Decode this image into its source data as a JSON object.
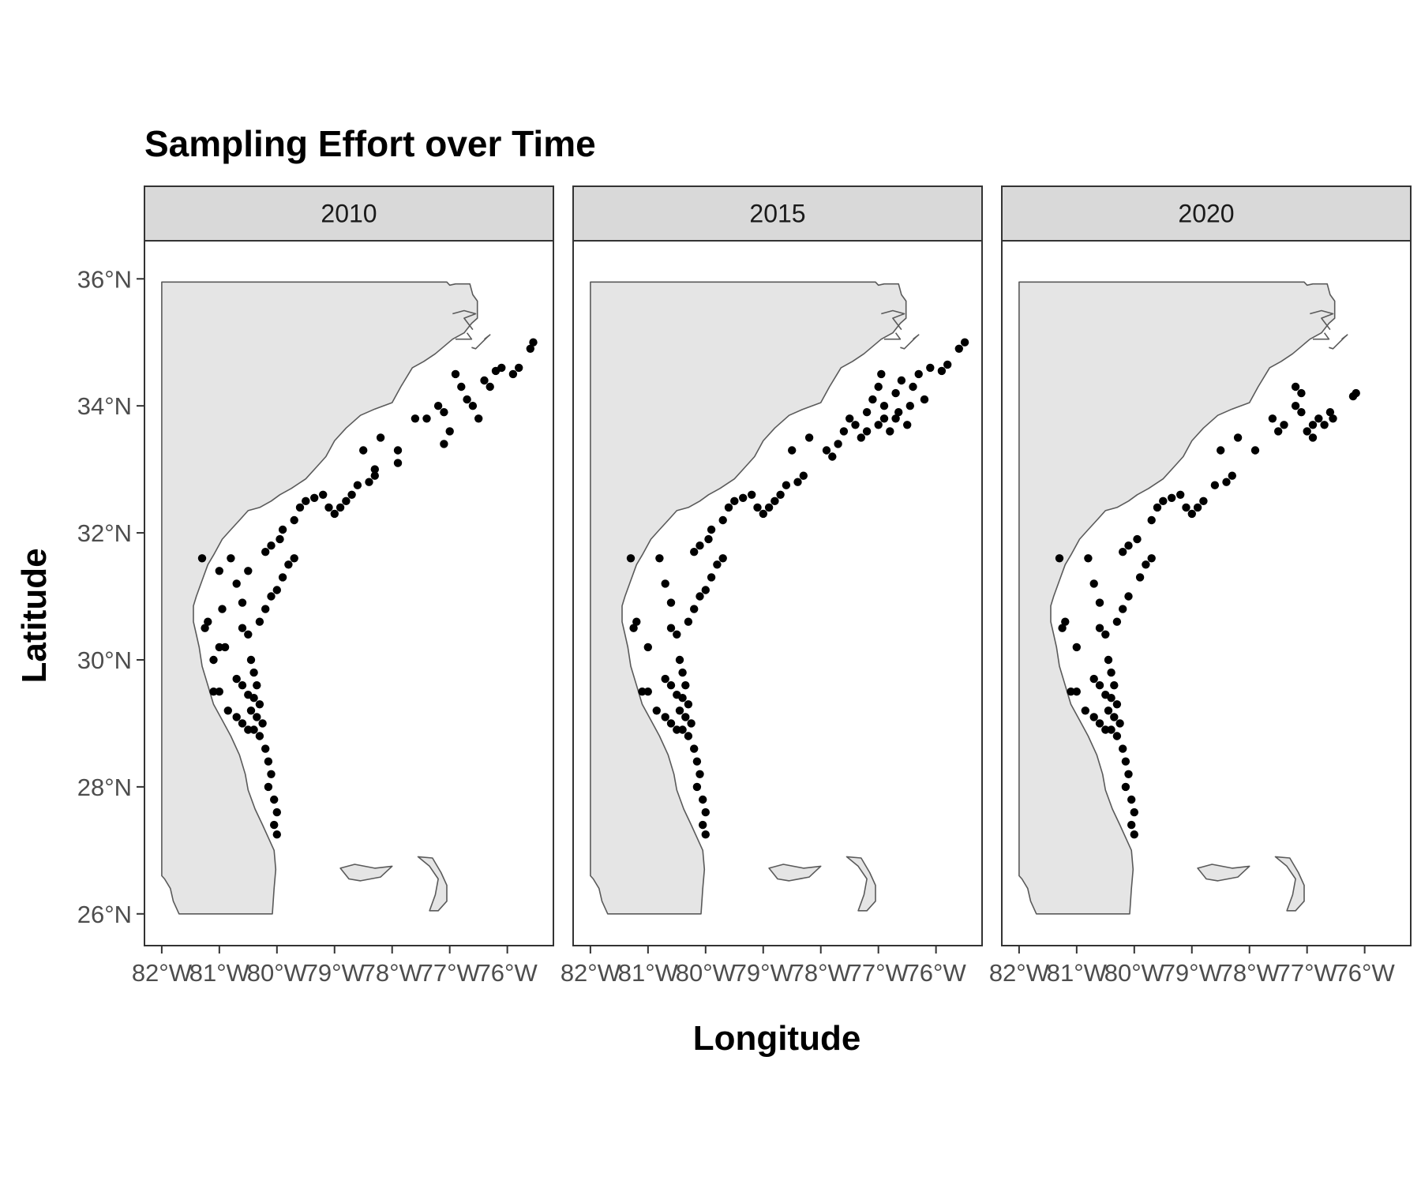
{
  "chart_data": {
    "type": "scatter",
    "map": "faceted point map of sampling stations along the southeastern US coast",
    "title": "Sampling Effort over Time",
    "xlabel": "Longitude",
    "ylabel": "Latitude",
    "x_ticks": [
      "82°W",
      "81°W",
      "80°W",
      "79°W",
      "78°W",
      "77°W",
      "76°W"
    ],
    "x_tick_values": [
      -82,
      -81,
      -80,
      -79,
      -78,
      -77,
      -76
    ],
    "y_ticks": [
      "36°N",
      "34°N",
      "32°N",
      "30°N",
      "28°N",
      "26°N"
    ],
    "y_tick_values": [
      36,
      34,
      32,
      30,
      28,
      26
    ],
    "xlim": [
      -82.3,
      -75.2
    ],
    "ylim": [
      25.5,
      36.6
    ],
    "grid": false,
    "land_color": "#e5e5e5",
    "land_outline_color": "#5a5a5a",
    "point_color": "#000000",
    "strip_color": "#d9d9d9",
    "facets": [
      {
        "label": "2010",
        "points": [
          [
            -81.2,
            30.6
          ],
          [
            -81.25,
            30.5
          ],
          [
            -81.0,
            30.2
          ],
          [
            -80.9,
            30.2
          ],
          [
            -81.0,
            29.5
          ],
          [
            -81.1,
            29.5
          ],
          [
            -80.85,
            29.2
          ],
          [
            -80.7,
            29.1
          ],
          [
            -80.6,
            29.0
          ],
          [
            -80.5,
            28.9
          ],
          [
            -80.6,
            30.5
          ],
          [
            -80.5,
            30.4
          ],
          [
            -80.45,
            30.0
          ],
          [
            -80.4,
            29.8
          ],
          [
            -80.35,
            29.6
          ],
          [
            -80.4,
            29.4
          ],
          [
            -80.3,
            29.3
          ],
          [
            -80.45,
            29.2
          ],
          [
            -80.35,
            29.1
          ],
          [
            -80.25,
            29.0
          ],
          [
            -80.4,
            28.9
          ],
          [
            -80.3,
            28.8
          ],
          [
            -80.2,
            28.6
          ],
          [
            -80.15,
            28.4
          ],
          [
            -80.1,
            28.2
          ],
          [
            -80.15,
            28.0
          ],
          [
            -80.05,
            27.8
          ],
          [
            -80.0,
            27.6
          ],
          [
            -80.05,
            27.4
          ],
          [
            -80.0,
            27.25
          ],
          [
            -80.3,
            30.6
          ],
          [
            -80.2,
            30.8
          ],
          [
            -80.1,
            31.0
          ],
          [
            -80.0,
            31.1
          ],
          [
            -79.9,
            31.3
          ],
          [
            -79.8,
            31.5
          ],
          [
            -79.7,
            31.6
          ],
          [
            -80.2,
            31.7
          ],
          [
            -80.1,
            31.8
          ],
          [
            -79.95,
            31.9
          ],
          [
            -79.9,
            32.05
          ],
          [
            -79.7,
            32.2
          ],
          [
            -79.6,
            32.4
          ],
          [
            -79.5,
            32.5
          ],
          [
            -79.35,
            32.55
          ],
          [
            -79.2,
            32.6
          ],
          [
            -79.1,
            32.4
          ],
          [
            -79.0,
            32.3
          ],
          [
            -78.9,
            32.4
          ],
          [
            -78.8,
            32.5
          ],
          [
            -78.7,
            32.6
          ],
          [
            -78.6,
            32.75
          ],
          [
            -78.4,
            32.8
          ],
          [
            -78.3,
            32.9
          ],
          [
            -78.3,
            33.0
          ],
          [
            -78.5,
            33.3
          ],
          [
            -78.2,
            33.5
          ],
          [
            -77.9,
            33.3
          ],
          [
            -77.9,
            33.1
          ],
          [
            -77.6,
            33.8
          ],
          [
            -77.4,
            33.8
          ],
          [
            -77.2,
            34.0
          ],
          [
            -77.1,
            33.9
          ],
          [
            -77.0,
            33.6
          ],
          [
            -77.1,
            33.4
          ],
          [
            -76.9,
            34.5
          ],
          [
            -76.8,
            34.3
          ],
          [
            -76.7,
            34.1
          ],
          [
            -76.6,
            34.0
          ],
          [
            -76.5,
            33.8
          ],
          [
            -76.4,
            34.4
          ],
          [
            -76.3,
            34.3
          ],
          [
            -76.2,
            34.55
          ],
          [
            -76.1,
            34.6
          ],
          [
            -75.9,
            34.5
          ],
          [
            -75.8,
            34.6
          ],
          [
            -75.6,
            34.9
          ],
          [
            -75.55,
            35.0
          ],
          [
            -81.3,
            31.6
          ],
          [
            -81.0,
            31.4
          ],
          [
            -80.8,
            31.6
          ],
          [
            -80.7,
            31.2
          ],
          [
            -80.5,
            31.4
          ],
          [
            -80.6,
            30.9
          ],
          [
            -80.95,
            30.8
          ],
          [
            -81.1,
            30.0
          ],
          [
            -80.7,
            29.7
          ],
          [
            -80.6,
            29.6
          ],
          [
            -80.5,
            29.45
          ]
        ]
      },
      {
        "label": "2015",
        "points": [
          [
            -81.2,
            30.6
          ],
          [
            -81.25,
            30.5
          ],
          [
            -81.0,
            30.2
          ],
          [
            -81.0,
            29.5
          ],
          [
            -81.1,
            29.5
          ],
          [
            -80.85,
            29.2
          ],
          [
            -80.7,
            29.1
          ],
          [
            -80.6,
            29.0
          ],
          [
            -80.5,
            28.9
          ],
          [
            -80.6,
            30.5
          ],
          [
            -80.5,
            30.4
          ],
          [
            -80.45,
            30.0
          ],
          [
            -80.4,
            29.8
          ],
          [
            -80.35,
            29.6
          ],
          [
            -80.4,
            29.4
          ],
          [
            -80.3,
            29.3
          ],
          [
            -80.45,
            29.2
          ],
          [
            -80.35,
            29.1
          ],
          [
            -80.25,
            29.0
          ],
          [
            -80.4,
            28.9
          ],
          [
            -80.3,
            28.8
          ],
          [
            -80.2,
            28.6
          ],
          [
            -80.15,
            28.4
          ],
          [
            -80.1,
            28.2
          ],
          [
            -80.15,
            28.0
          ],
          [
            -80.05,
            27.8
          ],
          [
            -80.0,
            27.6
          ],
          [
            -80.05,
            27.4
          ],
          [
            -80.0,
            27.25
          ],
          [
            -80.3,
            30.6
          ],
          [
            -80.2,
            30.8
          ],
          [
            -80.1,
            31.0
          ],
          [
            -80.0,
            31.1
          ],
          [
            -79.9,
            31.3
          ],
          [
            -79.8,
            31.5
          ],
          [
            -79.7,
            31.6
          ],
          [
            -80.2,
            31.7
          ],
          [
            -80.1,
            31.8
          ],
          [
            -79.95,
            31.9
          ],
          [
            -79.9,
            32.05
          ],
          [
            -79.7,
            32.2
          ],
          [
            -79.6,
            32.4
          ],
          [
            -79.5,
            32.5
          ],
          [
            -79.35,
            32.55
          ],
          [
            -79.2,
            32.6
          ],
          [
            -79.1,
            32.4
          ],
          [
            -79.0,
            32.3
          ],
          [
            -78.9,
            32.4
          ],
          [
            -78.8,
            32.5
          ],
          [
            -78.7,
            32.6
          ],
          [
            -78.6,
            32.75
          ],
          [
            -78.4,
            32.8
          ],
          [
            -78.3,
            32.9
          ],
          [
            -78.5,
            33.3
          ],
          [
            -78.2,
            33.5
          ],
          [
            -77.9,
            33.3
          ],
          [
            -77.8,
            33.2
          ],
          [
            -77.7,
            33.4
          ],
          [
            -77.6,
            33.6
          ],
          [
            -77.5,
            33.8
          ],
          [
            -77.4,
            33.7
          ],
          [
            -77.3,
            33.5
          ],
          [
            -77.2,
            33.9
          ],
          [
            -77.1,
            34.1
          ],
          [
            -77.0,
            34.3
          ],
          [
            -76.95,
            34.5
          ],
          [
            -76.9,
            33.8
          ],
          [
            -76.8,
            33.6
          ],
          [
            -76.7,
            34.2
          ],
          [
            -76.65,
            33.9
          ],
          [
            -76.6,
            34.4
          ],
          [
            -76.5,
            33.7
          ],
          [
            -76.45,
            34.0
          ],
          [
            -76.4,
            34.3
          ],
          [
            -76.3,
            34.5
          ],
          [
            -76.2,
            34.1
          ],
          [
            -76.1,
            34.6
          ],
          [
            -75.9,
            34.55
          ],
          [
            -75.8,
            34.65
          ],
          [
            -75.6,
            34.9
          ],
          [
            -75.5,
            35.0
          ],
          [
            -77.2,
            33.6
          ],
          [
            -77.0,
            33.7
          ],
          [
            -76.9,
            34.0
          ],
          [
            -76.7,
            33.8
          ],
          [
            -81.3,
            31.6
          ],
          [
            -80.8,
            31.6
          ],
          [
            -80.7,
            31.2
          ],
          [
            -80.6,
            30.9
          ],
          [
            -80.7,
            29.7
          ],
          [
            -80.6,
            29.6
          ],
          [
            -80.5,
            29.45
          ]
        ]
      },
      {
        "label": "2020",
        "points": [
          [
            -81.2,
            30.6
          ],
          [
            -81.25,
            30.5
          ],
          [
            -81.0,
            30.2
          ],
          [
            -81.0,
            29.5
          ],
          [
            -81.1,
            29.5
          ],
          [
            -80.85,
            29.2
          ],
          [
            -80.7,
            29.1
          ],
          [
            -80.6,
            29.0
          ],
          [
            -80.5,
            28.9
          ],
          [
            -80.6,
            30.5
          ],
          [
            -80.5,
            30.4
          ],
          [
            -80.45,
            30.0
          ],
          [
            -80.4,
            29.8
          ],
          [
            -80.35,
            29.6
          ],
          [
            -80.4,
            29.4
          ],
          [
            -80.3,
            29.3
          ],
          [
            -80.45,
            29.2
          ],
          [
            -80.35,
            29.1
          ],
          [
            -80.25,
            29.0
          ],
          [
            -80.4,
            28.9
          ],
          [
            -80.3,
            28.8
          ],
          [
            -80.2,
            28.6
          ],
          [
            -80.15,
            28.4
          ],
          [
            -80.1,
            28.2
          ],
          [
            -80.15,
            28.0
          ],
          [
            -80.05,
            27.8
          ],
          [
            -80.0,
            27.6
          ],
          [
            -80.05,
            27.4
          ],
          [
            -80.0,
            27.25
          ],
          [
            -80.3,
            30.6
          ],
          [
            -80.2,
            30.8
          ],
          [
            -80.1,
            31.0
          ],
          [
            -79.9,
            31.3
          ],
          [
            -79.8,
            31.5
          ],
          [
            -79.7,
            31.6
          ],
          [
            -80.2,
            31.7
          ],
          [
            -80.1,
            31.8
          ],
          [
            -79.95,
            31.9
          ],
          [
            -79.7,
            32.2
          ],
          [
            -79.6,
            32.4
          ],
          [
            -79.5,
            32.5
          ],
          [
            -79.35,
            32.55
          ],
          [
            -79.2,
            32.6
          ],
          [
            -79.1,
            32.4
          ],
          [
            -79.0,
            32.3
          ],
          [
            -78.9,
            32.4
          ],
          [
            -78.8,
            32.5
          ],
          [
            -78.6,
            32.75
          ],
          [
            -78.4,
            32.8
          ],
          [
            -78.3,
            32.9
          ],
          [
            -78.5,
            33.3
          ],
          [
            -78.2,
            33.5
          ],
          [
            -77.9,
            33.3
          ],
          [
            -77.6,
            33.8
          ],
          [
            -77.5,
            33.6
          ],
          [
            -77.4,
            33.7
          ],
          [
            -77.2,
            34.0
          ],
          [
            -77.1,
            33.9
          ],
          [
            -77.0,
            33.6
          ],
          [
            -76.9,
            33.5
          ],
          [
            -77.2,
            34.3
          ],
          [
            -77.1,
            34.2
          ],
          [
            -76.9,
            33.7
          ],
          [
            -76.8,
            33.8
          ],
          [
            -76.7,
            33.7
          ],
          [
            -76.6,
            33.9
          ],
          [
            -76.55,
            33.8
          ],
          [
            -76.2,
            34.15
          ],
          [
            -76.15,
            34.2
          ],
          [
            -81.3,
            31.6
          ],
          [
            -80.8,
            31.6
          ],
          [
            -80.7,
            31.2
          ],
          [
            -80.6,
            30.9
          ],
          [
            -80.7,
            29.7
          ],
          [
            -80.6,
            29.6
          ],
          [
            -80.5,
            29.45
          ]
        ]
      }
    ]
  }
}
